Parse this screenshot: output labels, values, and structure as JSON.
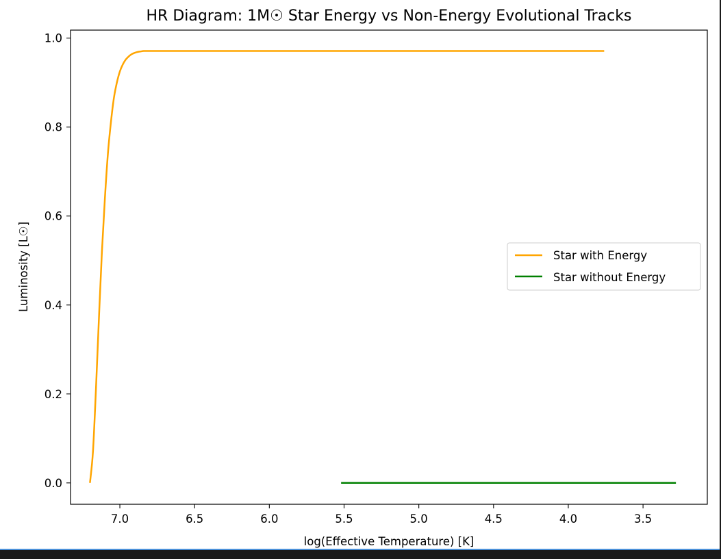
{
  "chart_data": {
    "type": "line",
    "title": "HR Diagram: 1M☉ Star Energy vs Non-Energy Evolutional Tracks",
    "xlabel": "log(Effective Temperature) [K]",
    "ylabel": "Luminosity [L☉]",
    "xlim": [
      7.33,
      3.07
    ],
    "ylim": [
      -0.048,
      1.018
    ],
    "x_inverted": true,
    "xticks": [
      7.0,
      6.5,
      6.0,
      5.5,
      5.0,
      4.5,
      4.0,
      3.5
    ],
    "xtick_labels": [
      "7.0",
      "6.5",
      "6.0",
      "5.5",
      "5.0",
      "4.5",
      "4.0",
      "3.5"
    ],
    "yticks": [
      0.0,
      0.2,
      0.4,
      0.6,
      0.8,
      1.0
    ],
    "ytick_labels": [
      "0.0",
      "0.2",
      "0.4",
      "0.6",
      "0.8",
      "1.0"
    ],
    "grid": false,
    "legend_position": "center-right",
    "series": [
      {
        "name": "Star with Energy",
        "color": "#ffa500",
        "x": [
          7.2,
          7.18,
          7.16,
          7.14,
          7.12,
          7.1,
          7.08,
          7.06,
          7.04,
          7.02,
          7.0,
          6.98,
          6.96,
          6.94,
          6.92,
          6.9,
          6.88,
          6.86,
          6.84,
          6.8,
          6.7,
          6.5,
          6.0,
          5.5,
          5.0,
          4.5,
          4.0,
          3.76
        ],
        "y": [
          0.0,
          0.07,
          0.21,
          0.37,
          0.52,
          0.64,
          0.74,
          0.81,
          0.865,
          0.9,
          0.925,
          0.941,
          0.952,
          0.959,
          0.964,
          0.967,
          0.969,
          0.97,
          0.971,
          0.971,
          0.971,
          0.971,
          0.971,
          0.971,
          0.971,
          0.971,
          0.971,
          0.971
        ]
      },
      {
        "name": "Star without Energy",
        "color": "#008000",
        "x": [
          5.52,
          3.28
        ],
        "y": [
          0.0,
          0.0
        ]
      }
    ]
  }
}
